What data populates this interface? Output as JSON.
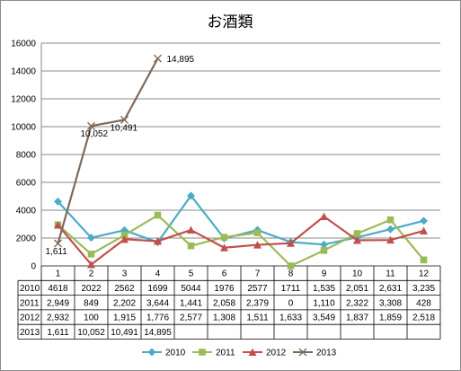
{
  "chart_data": {
    "type": "line",
    "title": "お酒類",
    "categories": [
      "1",
      "2",
      "3",
      "4",
      "5",
      "6",
      "7",
      "8",
      "9",
      "10",
      "11",
      "12"
    ],
    "ylim": [
      0,
      16000
    ],
    "yticks": [
      "0",
      "2000",
      "4000",
      "6000",
      "8000",
      "10000",
      "12000",
      "14000",
      "16000"
    ],
    "grid": true,
    "legend": "bottom",
    "series": [
      {
        "name": "2010",
        "color": "#4bacc6",
        "marker": "diamond",
        "values": [
          4618,
          2022,
          2562,
          1699,
          5044,
          1976,
          2577,
          1711,
          1535,
          2051,
          2631,
          3235
        ],
        "labels": [
          "4618",
          "2022",
          "2562",
          "1699",
          "5044",
          "1976",
          "2577",
          "1711",
          "1,535",
          "2,051",
          "2,631",
          "3,235"
        ]
      },
      {
        "name": "2011",
        "color": "#9bbb59",
        "marker": "square",
        "values": [
          2949,
          849,
          2202,
          3644,
          1441,
          2058,
          2379,
          0,
          1110,
          2322,
          3308,
          428
        ],
        "labels": [
          "2,949",
          "849",
          "2,202",
          "3,644",
          "1,441",
          "2,058",
          "2,379",
          "0",
          "1,110",
          "2,322",
          "3,308",
          "428"
        ]
      },
      {
        "name": "2012",
        "color": "#c0504d",
        "marker": "triangle",
        "values": [
          2932,
          100,
          1915,
          1776,
          2577,
          1308,
          1511,
          1633,
          3549,
          1837,
          1859,
          2518
        ],
        "labels": [
          "2,932",
          "100",
          "1,915",
          "1,776",
          "2,577",
          "1,308",
          "1,511",
          "1,633",
          "3,549",
          "1,837",
          "1,859",
          "2,518"
        ]
      },
      {
        "name": "2013",
        "color": "#7f6a5a",
        "marker": "x",
        "values": [
          1611,
          10052,
          10491,
          14895,
          null,
          null,
          null,
          null,
          null,
          null,
          null,
          null
        ],
        "labels": [
          "1,611",
          "10,052",
          "10,491",
          "14,895",
          "",
          "",
          "",
          "",
          "",
          "",
          "",
          ""
        ]
      }
    ],
    "data_labels": [
      {
        "series": "2013",
        "index": 0,
        "text": "1,611"
      },
      {
        "series": "2013",
        "index": 1,
        "text": "10,052"
      },
      {
        "series": "2013",
        "index": 2,
        "text": "10,491"
      },
      {
        "series": "2013",
        "index": 3,
        "text": "14,895"
      }
    ]
  }
}
